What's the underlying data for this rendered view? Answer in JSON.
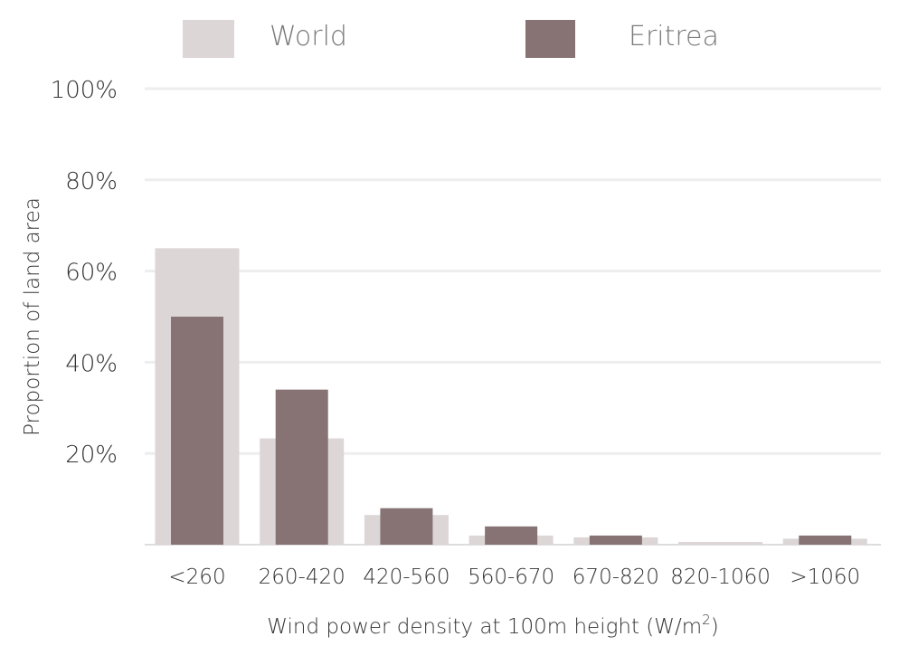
{
  "colors": {
    "world": "#dcd6d6",
    "eritrea": "#877374",
    "grid": "#eeeeee",
    "baseline": "#dddddd",
    "text": "#333333"
  },
  "chart_data": {
    "type": "bar",
    "categories": [
      "<260",
      "260-420",
      "420-560",
      "560-670",
      "670-820",
      "820-1060",
      ">1060"
    ],
    "series": [
      {
        "name": "World",
        "values": [
          65,
          23.3,
          6.5,
          2.0,
          1.6,
          0.6,
          1.3
        ]
      },
      {
        "name": "Eritrea",
        "values": [
          50,
          34,
          8,
          4,
          2,
          0,
          2
        ]
      }
    ],
    "y_ticks": [
      "100%",
      "80%",
      "60%",
      "40%",
      "20%"
    ],
    "y_tick_values": [
      100,
      80,
      60,
      40,
      20
    ],
    "xlabel": "Wind power density at 100m height (W/m",
    "xlabel_sup": "2",
    "xlabel_end": ")",
    "ylabel": "Proportion of land area",
    "ylim": [
      0,
      100
    ],
    "grid": true,
    "legend_position": "top"
  }
}
